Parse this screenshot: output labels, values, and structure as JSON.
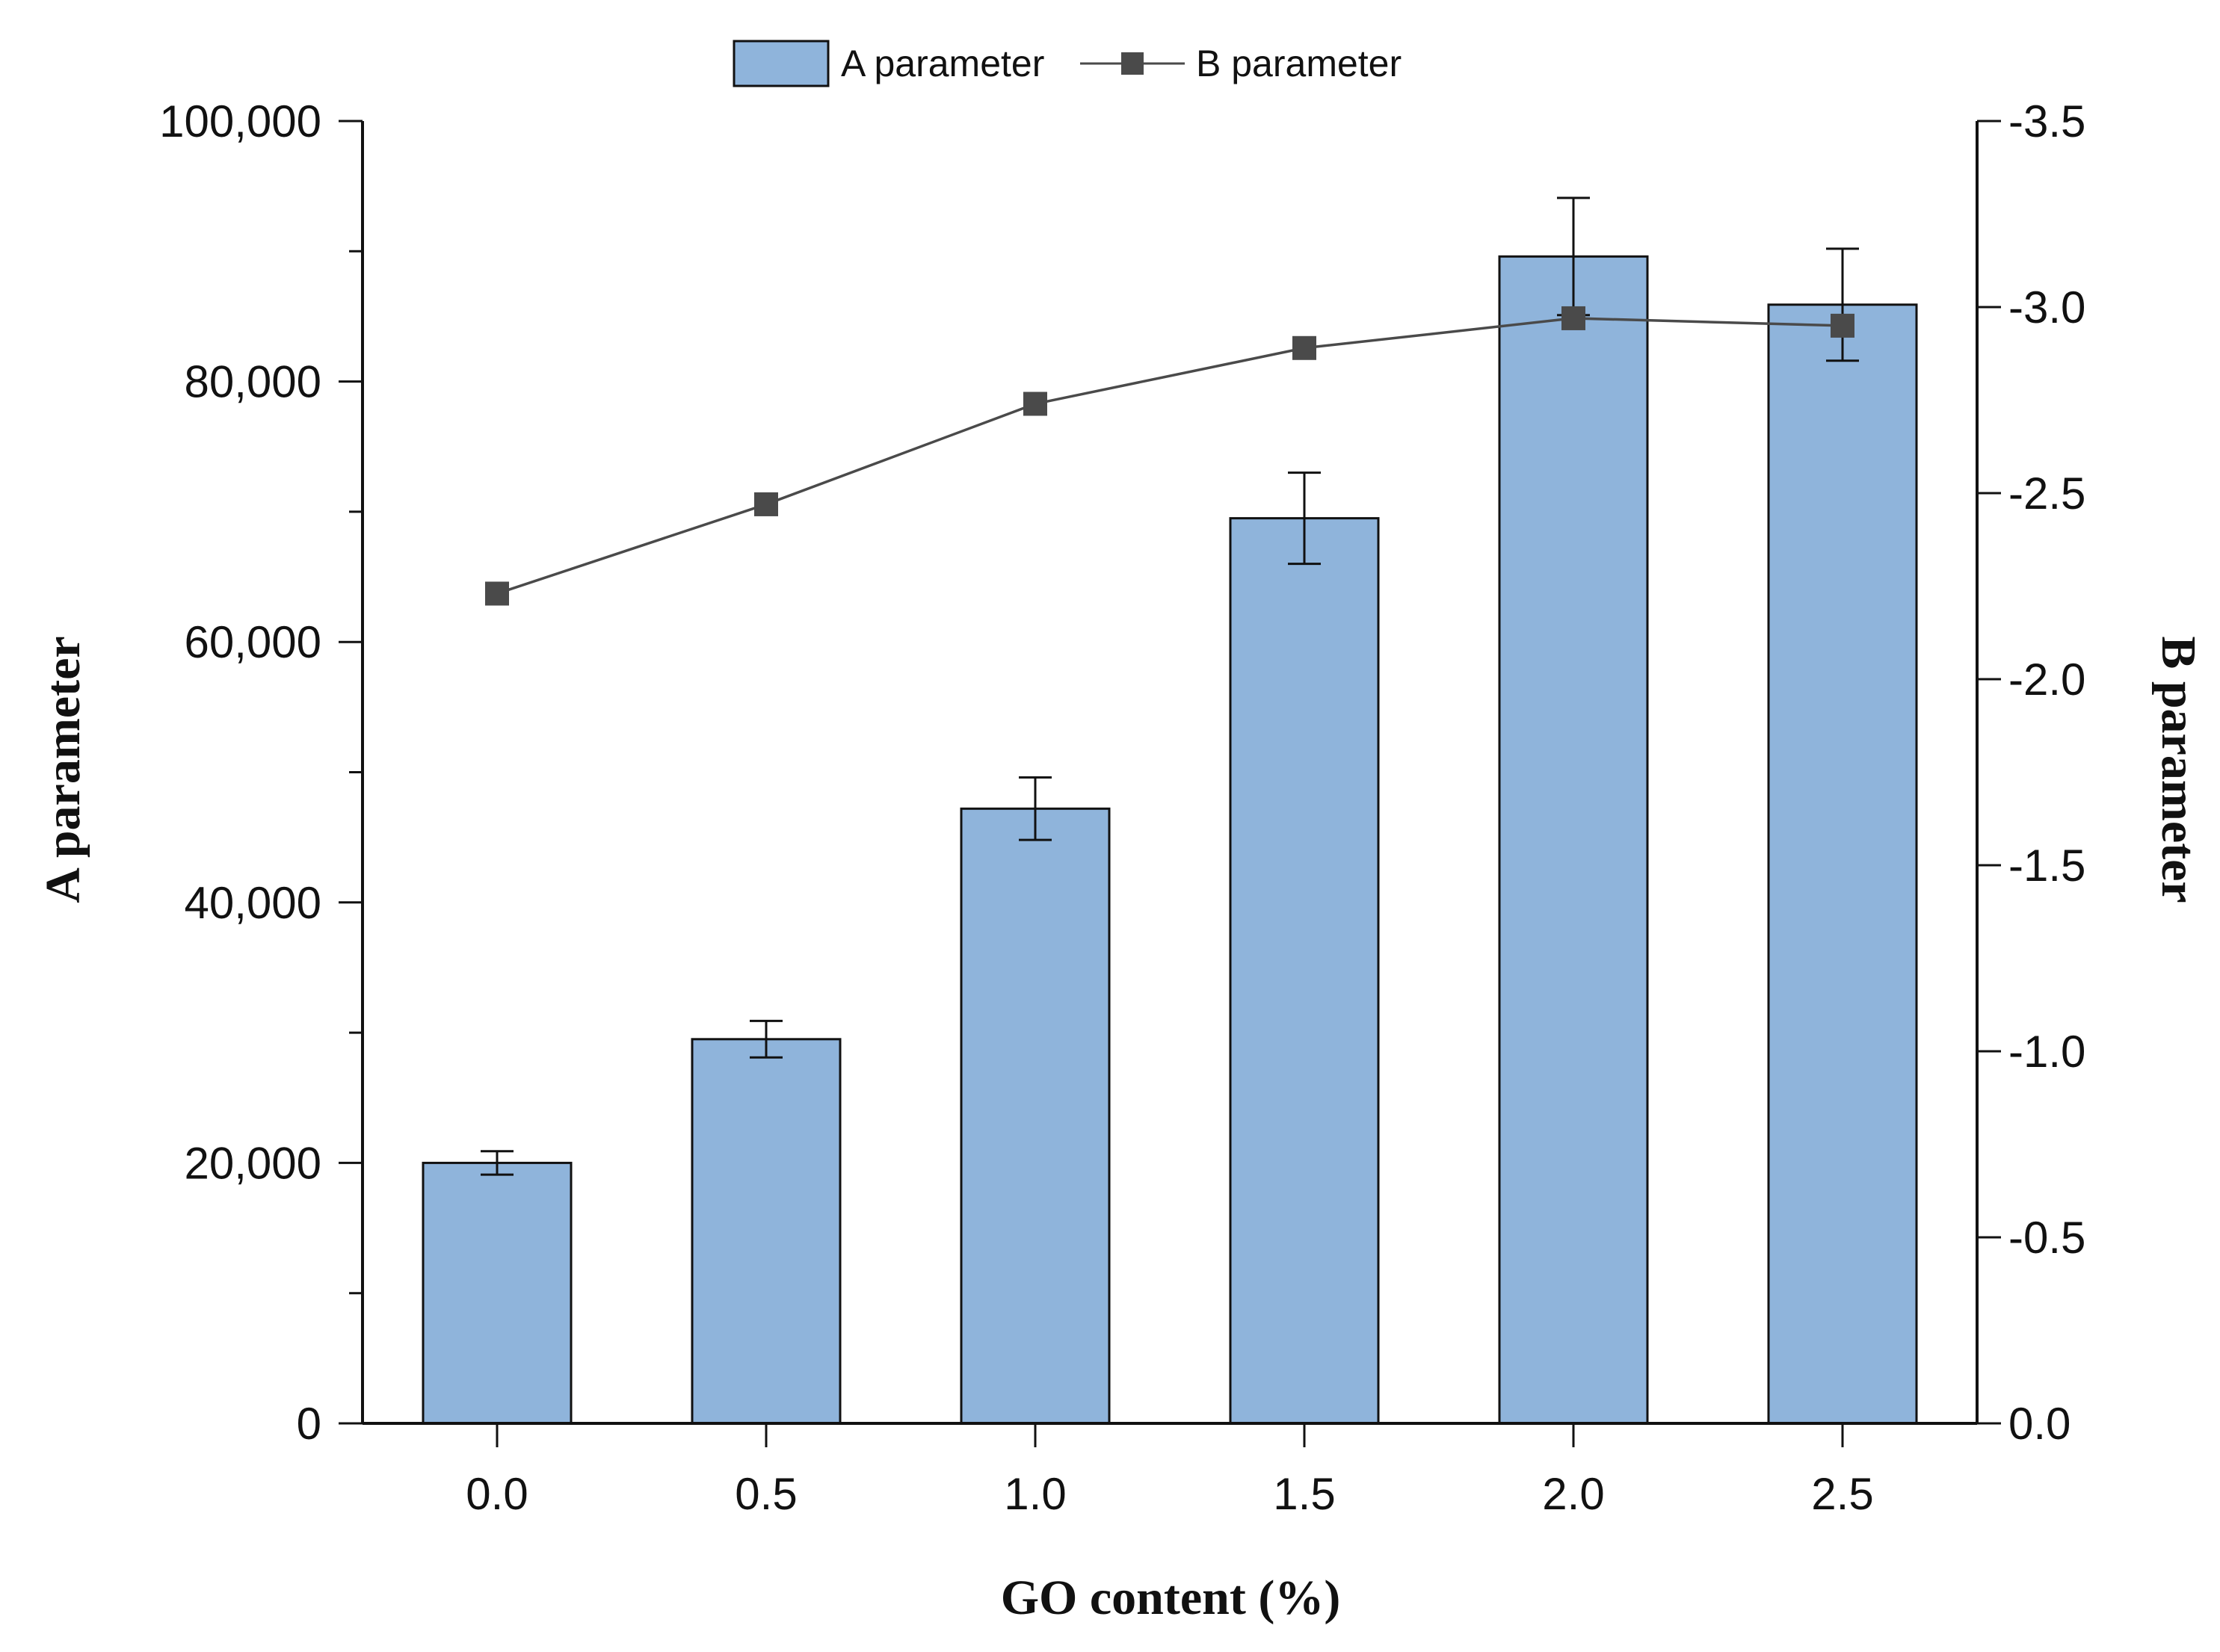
{
  "chart_data": {
    "type": "bar",
    "categories": [
      "0.0",
      "0.5",
      "1.0",
      "1.5",
      "2.0",
      "2.5"
    ],
    "series": [
      {
        "name": "A parameter",
        "kind": "bar",
        "axis": "left",
        "values": [
          20000,
          29500,
          47200,
          69500,
          89600,
          85900
        ],
        "errors": [
          900,
          1400,
          2400,
          3500,
          4500,
          4300
        ],
        "color": "#8fb4db"
      },
      {
        "name": "B parameter",
        "kind": "line",
        "axis": "right",
        "marker": "square",
        "values": [
          -2.23,
          -2.47,
          -2.74,
          -2.89,
          -2.97,
          -2.95
        ],
        "color": "#4a4a4a"
      }
    ],
    "xlabel": "GO content (%)",
    "ylabel": "A parameter",
    "y2label": "B parameter",
    "ylim": [
      0,
      100000
    ],
    "y2lim": [
      0,
      -3.5
    ],
    "yticks": [
      "0",
      "20,000",
      "40,000",
      "60,000",
      "80,000",
      "100,000"
    ],
    "y2ticks": [
      "0.0",
      "-0.5",
      "-1.0",
      "-1.5",
      "-2.0",
      "-2.5",
      "-3.0",
      "-3.5"
    ],
    "legend_position": "top-center",
    "grid": false
  }
}
